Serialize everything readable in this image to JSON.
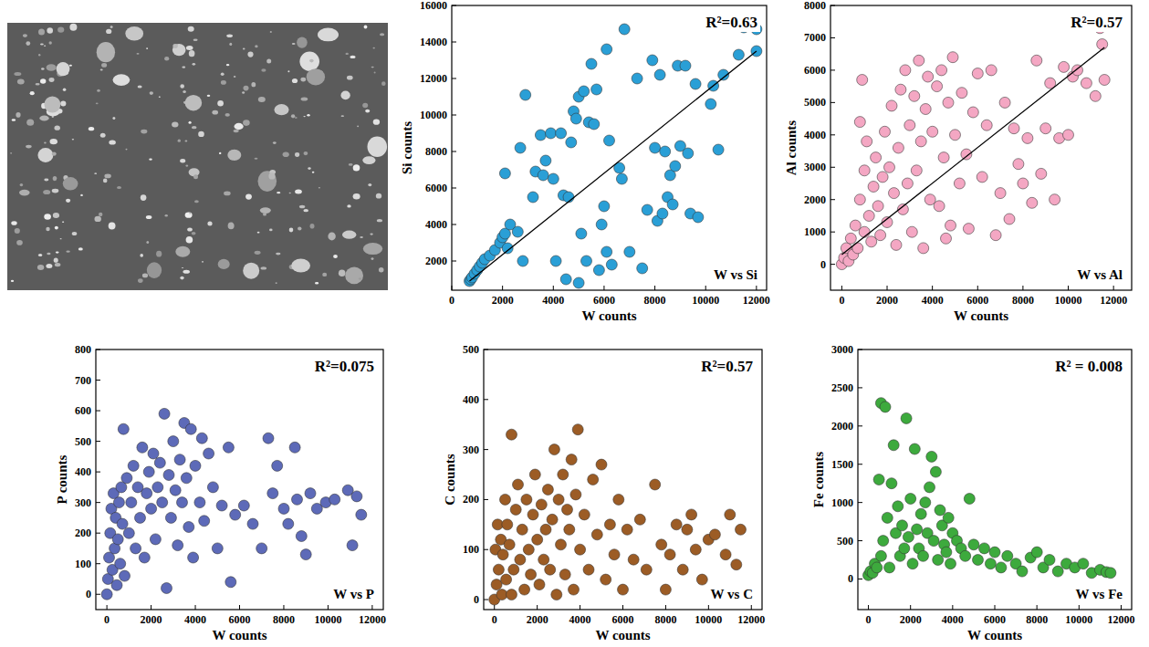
{
  "chart_data": [
    {
      "type": "scatter",
      "title": "W vs Si",
      "annotations": [
        "R²=0.63"
      ],
      "x_label": "W counts",
      "y_label": "Si counts",
      "xlim": [
        0,
        12400
      ],
      "xticks": [
        0,
        2000,
        4000,
        6000,
        8000,
        10000,
        12000
      ],
      "ylim": [
        400,
        16000
      ],
      "yticks": [
        2000,
        4000,
        6000,
        8000,
        10000,
        12000,
        14000,
        16000
      ],
      "grid": false,
      "series": [
        {
          "type": "scatter",
          "marker": "circle",
          "color": "#2a9fd6",
          "x": [
            700,
            750,
            800,
            900,
            1000,
            1100,
            1200,
            1300,
            1500,
            1700,
            1900,
            2000,
            2100,
            2200,
            2300,
            2100,
            2600,
            2800,
            2700,
            2900,
            3200,
            3300,
            3500,
            3600,
            3700,
            3900,
            4000,
            4100,
            4300,
            4400,
            4500,
            4600,
            4700,
            4800,
            4900,
            5000,
            5000,
            5200,
            5100,
            5300,
            5400,
            5500,
            5600,
            5700,
            5800,
            5900,
            6000,
            6100,
            6100,
            6200,
            6300,
            6600,
            6700,
            6800,
            7000,
            7300,
            7500,
            7700,
            7900,
            8000,
            8100,
            8200,
            8300,
            8400,
            8500,
            8600,
            8700,
            8800,
            8900,
            9000,
            9200,
            9300,
            9400,
            9600,
            9700,
            10200,
            10300,
            10500,
            10700,
            11300,
            11500,
            12000,
            12000
          ],
          "values": [
            900,
            1000,
            1100,
            1300,
            1500,
            1700,
            1900,
            2100,
            2300,
            2600,
            3000,
            3300,
            3500,
            2700,
            4000,
            6800,
            3600,
            2000,
            8200,
            11100,
            5500,
            6900,
            8900,
            6700,
            7500,
            9000,
            6500,
            2000,
            9000,
            5600,
            1000,
            5500,
            8500,
            10200,
            9800,
            11000,
            800,
            11300,
            3500,
            2000,
            9600,
            12800,
            9500,
            11400,
            1500,
            4000,
            5000,
            2500,
            13600,
            8600,
            1800,
            7100,
            6500,
            14700,
            2500,
            12000,
            1600,
            4800,
            13000,
            8200,
            4200,
            12200,
            4600,
            8000,
            5500,
            6700,
            5100,
            7200,
            12700,
            8300,
            12700,
            7900,
            4600,
            11700,
            4400,
            10600,
            11600,
            8100,
            12200,
            13300,
            14800,
            14700,
            13500
          ]
        },
        {
          "type": "line",
          "line_style": "solid",
          "color": "#000000",
          "x": [
            700,
            12000
          ],
          "values": [
            900,
            13500
          ]
        }
      ]
    },
    {
      "type": "scatter",
      "title": "W vs Al",
      "annotations": [
        "R²=0.57"
      ],
      "x_label": "W counts",
      "y_label": "Al counts",
      "xlim": [
        -500,
        12800
      ],
      "xticks": [
        0,
        2000,
        4000,
        6000,
        8000,
        10000,
        12000
      ],
      "ylim": [
        -800,
        8000
      ],
      "yticks": [
        0,
        1000,
        2000,
        3000,
        4000,
        5000,
        6000,
        7000,
        8000
      ],
      "grid": false,
      "series": [
        {
          "type": "scatter",
          "marker": "circle",
          "color": "#f4a7c3",
          "x": [
            0,
            100,
            200,
            300,
            400,
            500,
            600,
            700,
            800,
            800,
            900,
            1000,
            1000,
            1100,
            1200,
            1300,
            1400,
            1500,
            1600,
            1700,
            1800,
            1900,
            2000,
            2100,
            2200,
            2300,
            2400,
            2500,
            2600,
            2700,
            2800,
            2900,
            3000,
            3100,
            3200,
            3300,
            3400,
            3500,
            3600,
            3700,
            3800,
            3900,
            4000,
            4200,
            4300,
            4400,
            4500,
            4600,
            4700,
            4800,
            4900,
            5000,
            5200,
            5300,
            5500,
            5600,
            5800,
            6000,
            6200,
            6400,
            6600,
            6800,
            7000,
            7200,
            7400,
            7600,
            7800,
            8000,
            8200,
            8400,
            8600,
            8800,
            9000,
            9200,
            9400,
            9600,
            9800,
            10000,
            10200,
            10400,
            10800,
            11000,
            11200,
            11400,
            11500,
            11600
          ],
          "values": [
            0,
            200,
            500,
            100,
            800,
            300,
            1200,
            500,
            2000,
            4400,
            5700,
            1000,
            2900,
            3800,
            1500,
            700,
            2400,
            3300,
            1800,
            900,
            2700,
            4100,
            1300,
            3000,
            4900,
            2200,
            600,
            3600,
            5400,
            1700,
            6000,
            2500,
            4300,
            1000,
            5200,
            2900,
            6300,
            3800,
            500,
            4800,
            5800,
            2000,
            4100,
            5500,
            1800,
            6000,
            3300,
            800,
            5000,
            1200,
            6400,
            4000,
            2500,
            5300,
            3400,
            1100,
            4700,
            5900,
            2700,
            4300,
            6000,
            900,
            2200,
            5000,
            1400,
            4200,
            3100,
            2500,
            3900,
            1900,
            6300,
            2800,
            4200,
            5600,
            2000,
            3900,
            6100,
            4000,
            5800,
            6000,
            5600,
            7400,
            5200,
            7300,
            6800,
            5700
          ]
        },
        {
          "type": "line",
          "line_style": "solid",
          "color": "#000000",
          "x": [
            0,
            11600
          ],
          "values": [
            300,
            6700
          ]
        }
      ]
    },
    {
      "type": "scatter",
      "title": "W vs P",
      "annotations": [
        "R²=0.075"
      ],
      "x_label": "W counts",
      "y_label": "P counts",
      "xlim": [
        -500,
        12500
      ],
      "xticks": [
        0,
        2000,
        4000,
        6000,
        8000,
        10000,
        12000
      ],
      "ylim": [
        -50,
        800
      ],
      "yticks": [
        0,
        100,
        200,
        300,
        400,
        500,
        600,
        700,
        800
      ],
      "grid": false,
      "series": [
        {
          "type": "scatter",
          "marker": "circle",
          "color": "#5d6ab8",
          "x": [
            0,
            50,
            100,
            150,
            200,
            250,
            300,
            350,
            400,
            450,
            500,
            550,
            600,
            650,
            700,
            750,
            800,
            900,
            1000,
            1100,
            1200,
            1300,
            1400,
            1500,
            1600,
            1700,
            1800,
            1900,
            2000,
            2100,
            2200,
            2300,
            2400,
            2500,
            2600,
            2700,
            2800,
            2900,
            3000,
            3100,
            3200,
            3300,
            3400,
            3500,
            3600,
            3700,
            3800,
            3900,
            4000,
            4200,
            4300,
            4400,
            4600,
            4800,
            5000,
            5200,
            5500,
            5600,
            5800,
            6200,
            6600,
            7000,
            7300,
            7500,
            7700,
            8000,
            8200,
            8500,
            8600,
            8800,
            9000,
            9200,
            9500,
            9900,
            10300,
            10900,
            11100,
            11300,
            11500
          ],
          "values": [
            0,
            50,
            120,
            200,
            280,
            80,
            330,
            150,
            250,
            30,
            180,
            300,
            100,
            350,
            230,
            540,
            60,
            380,
            200,
            300,
            420,
            150,
            350,
            250,
            480,
            120,
            330,
            400,
            280,
            460,
            180,
            350,
            430,
            300,
            590,
            20,
            390,
            250,
            500,
            340,
            160,
            440,
            300,
            560,
            380,
            220,
            540,
            120,
            420,
            300,
            510,
            240,
            460,
            350,
            150,
            290,
            480,
            40,
            260,
            290,
            230,
            150,
            510,
            330,
            420,
            280,
            230,
            480,
            310,
            190,
            130,
            330,
            280,
            300,
            310,
            340,
            160,
            320,
            260
          ]
        }
      ]
    },
    {
      "type": "scatter",
      "title": "W vs C",
      "annotations": [
        "R²=0.57"
      ],
      "x_label": "W counts",
      "y_label": "C counts",
      "xlim": [
        -500,
        12500
      ],
      "xticks": [
        0,
        2000,
        4000,
        6000,
        8000,
        10000,
        12000
      ],
      "ylim": [
        -20,
        500
      ],
      "yticks": [
        0,
        100,
        200,
        300,
        400,
        500
      ],
      "grid": false,
      "series": [
        {
          "type": "scatter",
          "marker": "circle",
          "color": "#9c5c25",
          "x": [
            0,
            50,
            100,
            150,
            200,
            300,
            350,
            400,
            500,
            550,
            600,
            700,
            800,
            800,
            900,
            1000,
            1100,
            1200,
            1300,
            1400,
            1500,
            1600,
            1700,
            1800,
            1900,
            2000,
            2100,
            2200,
            2300,
            2400,
            2500,
            2600,
            2700,
            2800,
            2900,
            3000,
            3100,
            3200,
            3300,
            3400,
            3500,
            3600,
            3700,
            3800,
            3900,
            4000,
            4200,
            4400,
            4600,
            4800,
            5000,
            5200,
            5400,
            5600,
            5800,
            6000,
            6200,
            6500,
            6800,
            7100,
            7500,
            7800,
            8000,
            8200,
            8500,
            8800,
            9000,
            9200,
            9400,
            9700,
            10000,
            10300,
            10800,
            11000,
            11300,
            11500
          ],
          "values": [
            0,
            100,
            30,
            150,
            60,
            120,
            10,
            90,
            200,
            40,
            150,
            110,
            330,
            10,
            60,
            180,
            230,
            80,
            140,
            20,
            200,
            100,
            50,
            170,
            250,
            120,
            30,
            190,
            80,
            140,
            220,
            60,
            160,
            300,
            10,
            200,
            110,
            250,
            50,
            180,
            140,
            280,
            20,
            210,
            340,
            100,
            170,
            60,
            240,
            130,
            270,
            40,
            150,
            90,
            200,
            20,
            140,
            80,
            160,
            60,
            230,
            110,
            20,
            90,
            150,
            60,
            140,
            170,
            100,
            40,
            120,
            130,
            90,
            170,
            70,
            140
          ]
        }
      ]
    },
    {
      "type": "scatter",
      "title": "W vs Fe",
      "annotations": [
        "R² = 0.008"
      ],
      "x_label": "W counts",
      "y_label": "Fe counts",
      "xlim": [
        -500,
        12500
      ],
      "xticks": [
        0,
        2000,
        4000,
        6000,
        8000,
        10000,
        12000
      ],
      "ylim": [
        -400,
        3000
      ],
      "yticks": [
        0,
        500,
        1000,
        1500,
        2000,
        2500,
        3000
      ],
      "grid": false,
      "series": [
        {
          "type": "scatter",
          "marker": "circle",
          "color": "#3daa3d",
          "x": [
            0,
            100,
            200,
            300,
            400,
            500,
            600,
            600,
            700,
            800,
            900,
            1000,
            1100,
            1200,
            1300,
            1400,
            1500,
            1600,
            1700,
            1800,
            1900,
            2000,
            2100,
            2200,
            2300,
            2400,
            2500,
            2600,
            2700,
            2800,
            2900,
            3000,
            3100,
            3200,
            3300,
            3400,
            3500,
            3600,
            3700,
            3800,
            3900,
            4000,
            4200,
            4400,
            4600,
            4800,
            5000,
            5200,
            5500,
            5800,
            6000,
            6300,
            6600,
            7000,
            7300,
            7700,
            8000,
            8300,
            8600,
            9000,
            9400,
            9800,
            10200,
            10600,
            11000,
            11300,
            11500
          ],
          "values": [
            50,
            100,
            80,
            200,
            150,
            1300,
            2300,
            300,
            500,
            2250,
            800,
            150,
            1250,
            1750,
            600,
            950,
            300,
            700,
            400,
            2100,
            550,
            1050,
            200,
            1700,
            650,
            400,
            850,
            300,
            1000,
            600,
            1200,
            1600,
            500,
            1400,
            250,
            900,
            700,
            450,
            350,
            800,
            200,
            600,
            500,
            400,
            300,
            1050,
            450,
            250,
            400,
            200,
            350,
            150,
            300,
            200,
            100,
            280,
            350,
            150,
            250,
            100,
            200,
            150,
            200,
            80,
            120,
            90,
            80
          ]
        }
      ]
    }
  ]
}
